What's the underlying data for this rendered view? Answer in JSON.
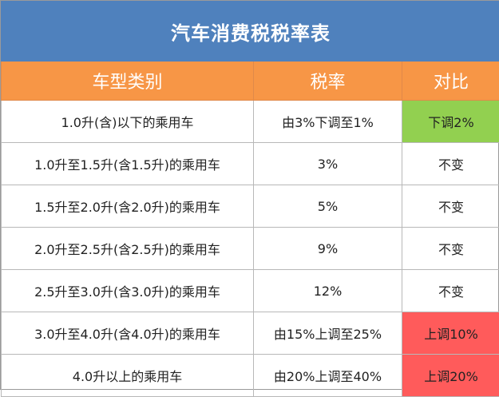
{
  "title": "汽车消费税税率表",
  "headers": {
    "type": "车型类别",
    "rate": "税率",
    "compare": "对比"
  },
  "colors": {
    "title_bg": "#4f81bd",
    "header_bg": "#f79646",
    "decrease": "#92d050",
    "increase": "#ff5b5b"
  },
  "rows": [
    {
      "type": "1.0升(含)以下的乘用车",
      "rate": "由3%下调至1%",
      "compare": "下调2%",
      "status": "decrease"
    },
    {
      "type": "1.0升至1.5升(含1.5升)的乘用车",
      "rate": "3%",
      "compare": "不变",
      "status": "same"
    },
    {
      "type": "1.5升至2.0升(含2.0升)的乘用车",
      "rate": "5%",
      "compare": "不变",
      "status": "same"
    },
    {
      "type": "2.0升至2.5升(含2.5升)的乘用车",
      "rate": "9%",
      "compare": "不变",
      "status": "same"
    },
    {
      "type": "2.5升至3.0升(含3.0升)的乘用车",
      "rate": "12%",
      "compare": "不变",
      "status": "same"
    },
    {
      "type": "3.0升至4.0升(含4.0升)的乘用车",
      "rate": "由15%上调至25%",
      "compare": "上调10%",
      "status": "increase"
    },
    {
      "type": "4.0升以上的乘用车",
      "rate": "由20%上调至40%",
      "compare": "上调20%",
      "status": "increase"
    }
  ]
}
